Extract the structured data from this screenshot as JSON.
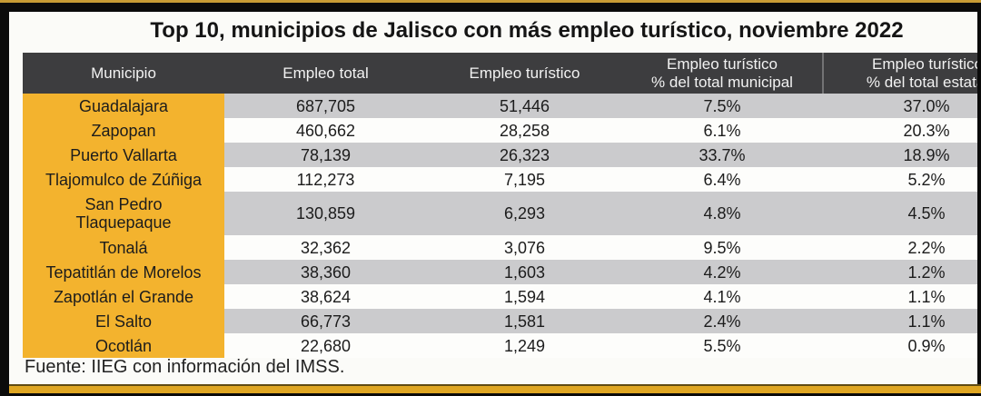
{
  "title": "Top 10, municipios de Jalisco con más empleo turístico, noviembre 2022",
  "footer": {
    "source": "Fuente: IIEG con información del IMSS."
  },
  "colors": {
    "header_bg": "#3D3D3F",
    "municipio_column_bg": "#F3B32E",
    "row_alt_gray": "#CBCBCD",
    "row_alt_white": "#FDFDFB",
    "accent_gold": "#DFA622",
    "frame_black": "#0B0B0B"
  },
  "table": {
    "columns": [
      {
        "line1": "Municipio",
        "line2": ""
      },
      {
        "line1": "Empleo total",
        "line2": ""
      },
      {
        "line1": "Empleo turístico",
        "line2": ""
      },
      {
        "line1": "Empleo turístico",
        "line2": "% del total municipal"
      },
      {
        "line1": "Empleo turístico",
        "line2": "% del total estatal"
      }
    ],
    "rows": [
      {
        "municipio": "Guadalajara",
        "empleo_total": "687,705",
        "empleo_turistico": "51,446",
        "pct_municipal": "7.5%",
        "pct_estatal": "37.0%"
      },
      {
        "municipio": "Zapopan",
        "empleo_total": "460,662",
        "empleo_turistico": "28,258",
        "pct_municipal": "6.1%",
        "pct_estatal": "20.3%"
      },
      {
        "municipio": "Puerto Vallarta",
        "empleo_total": "78,139",
        "empleo_turistico": "26,323",
        "pct_municipal": "33.7%",
        "pct_estatal": "18.9%"
      },
      {
        "municipio": "Tlajomulco de Zúñiga",
        "empleo_total": "112,273",
        "empleo_turistico": "7,195",
        "pct_municipal": "6.4%",
        "pct_estatal": "5.2%"
      },
      {
        "municipio": "San Pedro Tlaquepaque",
        "empleo_total": "130,859",
        "empleo_turistico": "6,293",
        "pct_municipal": "4.8%",
        "pct_estatal": "4.5%"
      },
      {
        "municipio": "Tonalá",
        "empleo_total": "32,362",
        "empleo_turistico": "3,076",
        "pct_municipal": "9.5%",
        "pct_estatal": "2.2%"
      },
      {
        "municipio": "Tepatitlán de Morelos",
        "empleo_total": "38,360",
        "empleo_turistico": "1,603",
        "pct_municipal": "4.2%",
        "pct_estatal": "1.2%"
      },
      {
        "municipio": "Zapotlán el Grande",
        "empleo_total": "38,624",
        "empleo_turistico": "1,594",
        "pct_municipal": "4.1%",
        "pct_estatal": "1.1%"
      },
      {
        "municipio": "El Salto",
        "empleo_total": "66,773",
        "empleo_turistico": "1,581",
        "pct_municipal": "2.4%",
        "pct_estatal": "1.1%"
      },
      {
        "municipio": "Ocotlán",
        "empleo_total": "22,680",
        "empleo_turistico": "1,249",
        "pct_municipal": "5.5%",
        "pct_estatal": "0.9%"
      }
    ]
  },
  "chart_data": {
    "type": "table",
    "title": "Top 10, municipios de Jalisco con más empleo turístico, noviembre 2022",
    "columns": [
      "Municipio",
      "Empleo total",
      "Empleo turístico",
      "Empleo turístico % del total municipal",
      "Empleo turístico % del total estatal"
    ],
    "rows": [
      [
        "Guadalajara",
        687705,
        51446,
        7.5,
        37.0
      ],
      [
        "Zapopan",
        460662,
        28258,
        6.1,
        20.3
      ],
      [
        "Puerto Vallarta",
        78139,
        26323,
        33.7,
        18.9
      ],
      [
        "Tlajomulco de Zúñiga",
        112273,
        7195,
        6.4,
        5.2
      ],
      [
        "San Pedro Tlaquepaque",
        130859,
        6293,
        4.8,
        4.5
      ],
      [
        "Tonalá",
        32362,
        3076,
        9.5,
        2.2
      ],
      [
        "Tepatitlán de Morelos",
        38360,
        1603,
        4.2,
        1.2
      ],
      [
        "Zapotlán el Grande",
        38624,
        1594,
        4.1,
        1.1
      ],
      [
        "El Salto",
        66773,
        1581,
        2.4,
        1.1
      ],
      [
        "Ocotlán",
        22680,
        1249,
        5.5,
        0.9
      ]
    ],
    "percent_columns_unit": "%",
    "source": "Fuente: IIEG con información del IMSS.",
    "notes": "Last column clipped at right edge of frame"
  }
}
